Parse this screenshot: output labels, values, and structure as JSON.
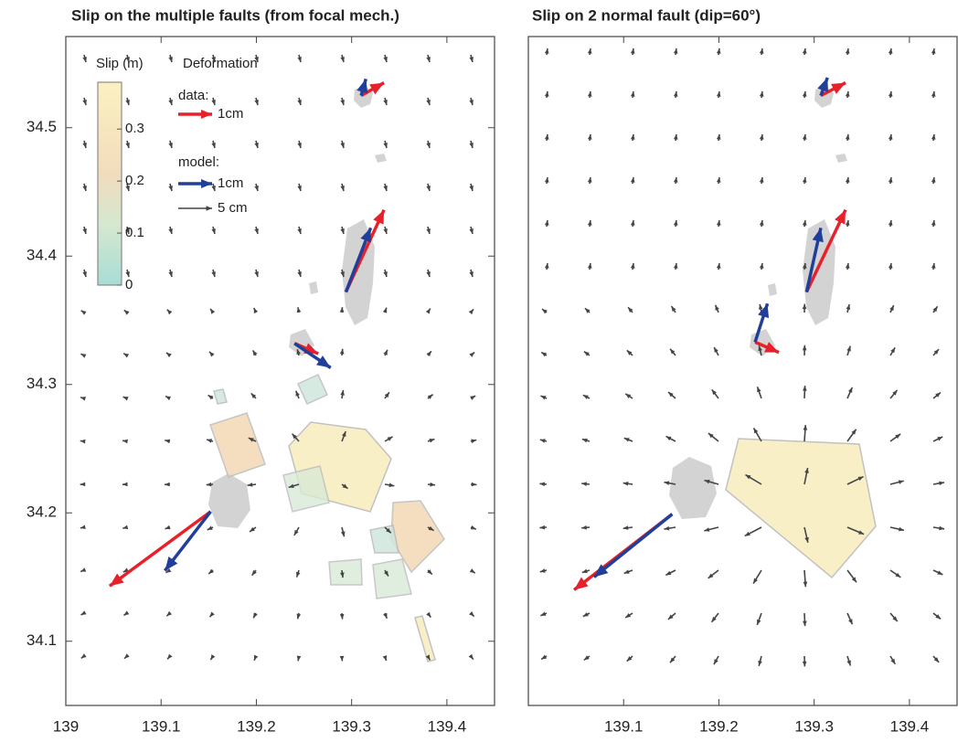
{
  "panels": [
    {
      "title": "Slip on the multiple faults (from focal mech.)",
      "xlim": [
        139,
        139.45
      ],
      "ylim": [
        34.05,
        34.571
      ],
      "xticks": [
        139,
        139.1,
        139.2,
        139.3,
        139.4
      ],
      "yticks": [
        34.1,
        34.2,
        34.3,
        34.4,
        34.5
      ],
      "stations": [
        {
          "start": [
            139.31,
            34.525
          ],
          "data_end": [
            139.334,
            34.535
          ],
          "model_end": [
            139.315,
            34.538
          ]
        },
        {
          "start": [
            139.294,
            34.372
          ],
          "data_end": [
            139.334,
            34.436
          ],
          "model_end": [
            139.32,
            34.422
          ]
        },
        {
          "start": [
            139.24,
            34.332
          ],
          "data_end": [
            139.265,
            34.324
          ],
          "model_end": [
            139.278,
            34.313
          ]
        },
        {
          "start": [
            139.152,
            34.201
          ],
          "data_end": [
            139.046,
            34.143
          ],
          "model_end": [
            139.104,
            34.155
          ]
        }
      ]
    },
    {
      "title": "Slip on 2 normal fault (dip=60°)",
      "xlim": [
        139,
        139.45
      ],
      "ylim": [
        34.05,
        34.571
      ],
      "xticks": [
        139.1,
        139.2,
        139.3,
        139.4
      ],
      "stations": [
        {
          "start": [
            139.307,
            34.525
          ],
          "data_end": [
            139.333,
            34.535
          ],
          "model_end": [
            139.314,
            34.539
          ]
        },
        {
          "start": [
            139.292,
            34.372
          ],
          "data_end": [
            139.333,
            34.436
          ],
          "model_end": [
            139.307,
            34.422
          ]
        },
        {
          "start": [
            139.238,
            34.333
          ],
          "data_end": [
            139.263,
            34.325
          ],
          "model_end": [
            139.251,
            34.363
          ]
        },
        {
          "start": [
            139.151,
            34.199
          ],
          "data_end": [
            139.048,
            34.14
          ],
          "model_end": [
            139.069,
            34.15
          ]
        }
      ]
    }
  ],
  "colorbar": {
    "label": "Slip (m)",
    "lim": [
      0,
      0.39
    ],
    "ticks": [
      0,
      0.1,
      0.2,
      0.3
    ]
  },
  "legend": {
    "title": "Deformation",
    "data_label": "data:",
    "data_scale": "1cm",
    "model_label": "model:",
    "model_scale": "1cm",
    "field_scale": "5 cm",
    "data_color": "#e8202a",
    "model_color": "#1f3f9a",
    "field_color": "#444444"
  }
}
